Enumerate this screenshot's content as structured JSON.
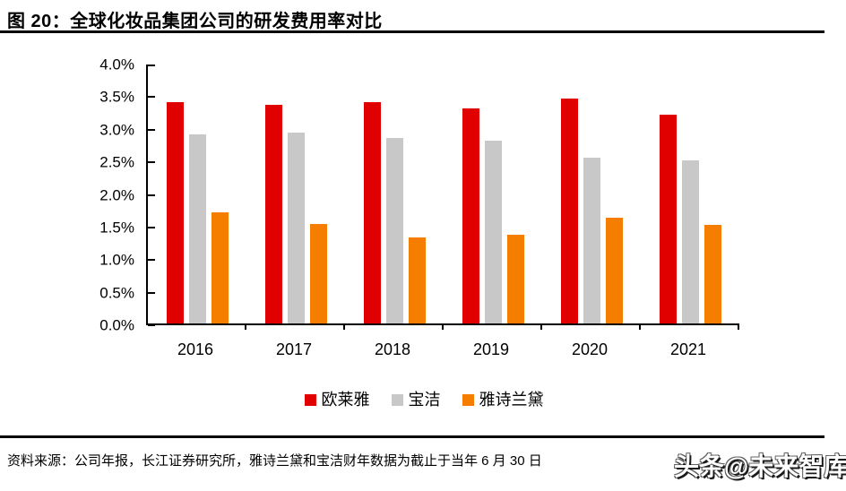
{
  "header": {
    "figure_label_and_title": "图 20：全球化妆品集团公司的研发费用率对比"
  },
  "footer": {
    "source": "资料来源：公司年报，长江证券研究所，雅诗兰黛和宝洁财年数据为截止于当年 6 月 30 日",
    "watermark": "头条@未来智库"
  },
  "colors": {
    "loreal_red": "#E00000",
    "pg_gray": "#C8C8C8",
    "estee_lauder_orange": "#F57E00",
    "axis_black": "#000000"
  },
  "chart_data": {
    "type": "bar",
    "title": "全球化妆品集团公司的研发费用率对比",
    "categories": [
      "2016",
      "2017",
      "2018",
      "2019",
      "2020",
      "2021"
    ],
    "series": [
      {
        "name": "欧莱雅",
        "color": "#E00000",
        "values": [
          3.4,
          3.35,
          3.4,
          3.3,
          3.45,
          3.2
        ]
      },
      {
        "name": "宝洁",
        "color": "#C8C8C8",
        "values": [
          2.9,
          2.93,
          2.85,
          2.8,
          2.55,
          2.5
        ]
      },
      {
        "name": "雅诗兰黛",
        "color": "#F57E00",
        "values": [
          1.7,
          1.53,
          1.32,
          1.36,
          1.62,
          1.51
        ]
      }
    ],
    "xlabel": "",
    "ylabel": "",
    "ylim": [
      0,
      4.0
    ],
    "yticks": [
      {
        "value": 4.0,
        "label": "4.0%"
      },
      {
        "value": 3.5,
        "label": "3.5%"
      },
      {
        "value": 3.0,
        "label": "3.0%"
      },
      {
        "value": 2.5,
        "label": "2.5%"
      },
      {
        "value": 2.0,
        "label": "2.0%"
      },
      {
        "value": 1.5,
        "label": "1.5%"
      },
      {
        "value": 1.0,
        "label": "1.0%"
      },
      {
        "value": 0.5,
        "label": "0.5%"
      },
      {
        "value": 0.0,
        "label": "0.0%"
      }
    ],
    "grid": false,
    "legend_position": "bottom"
  }
}
